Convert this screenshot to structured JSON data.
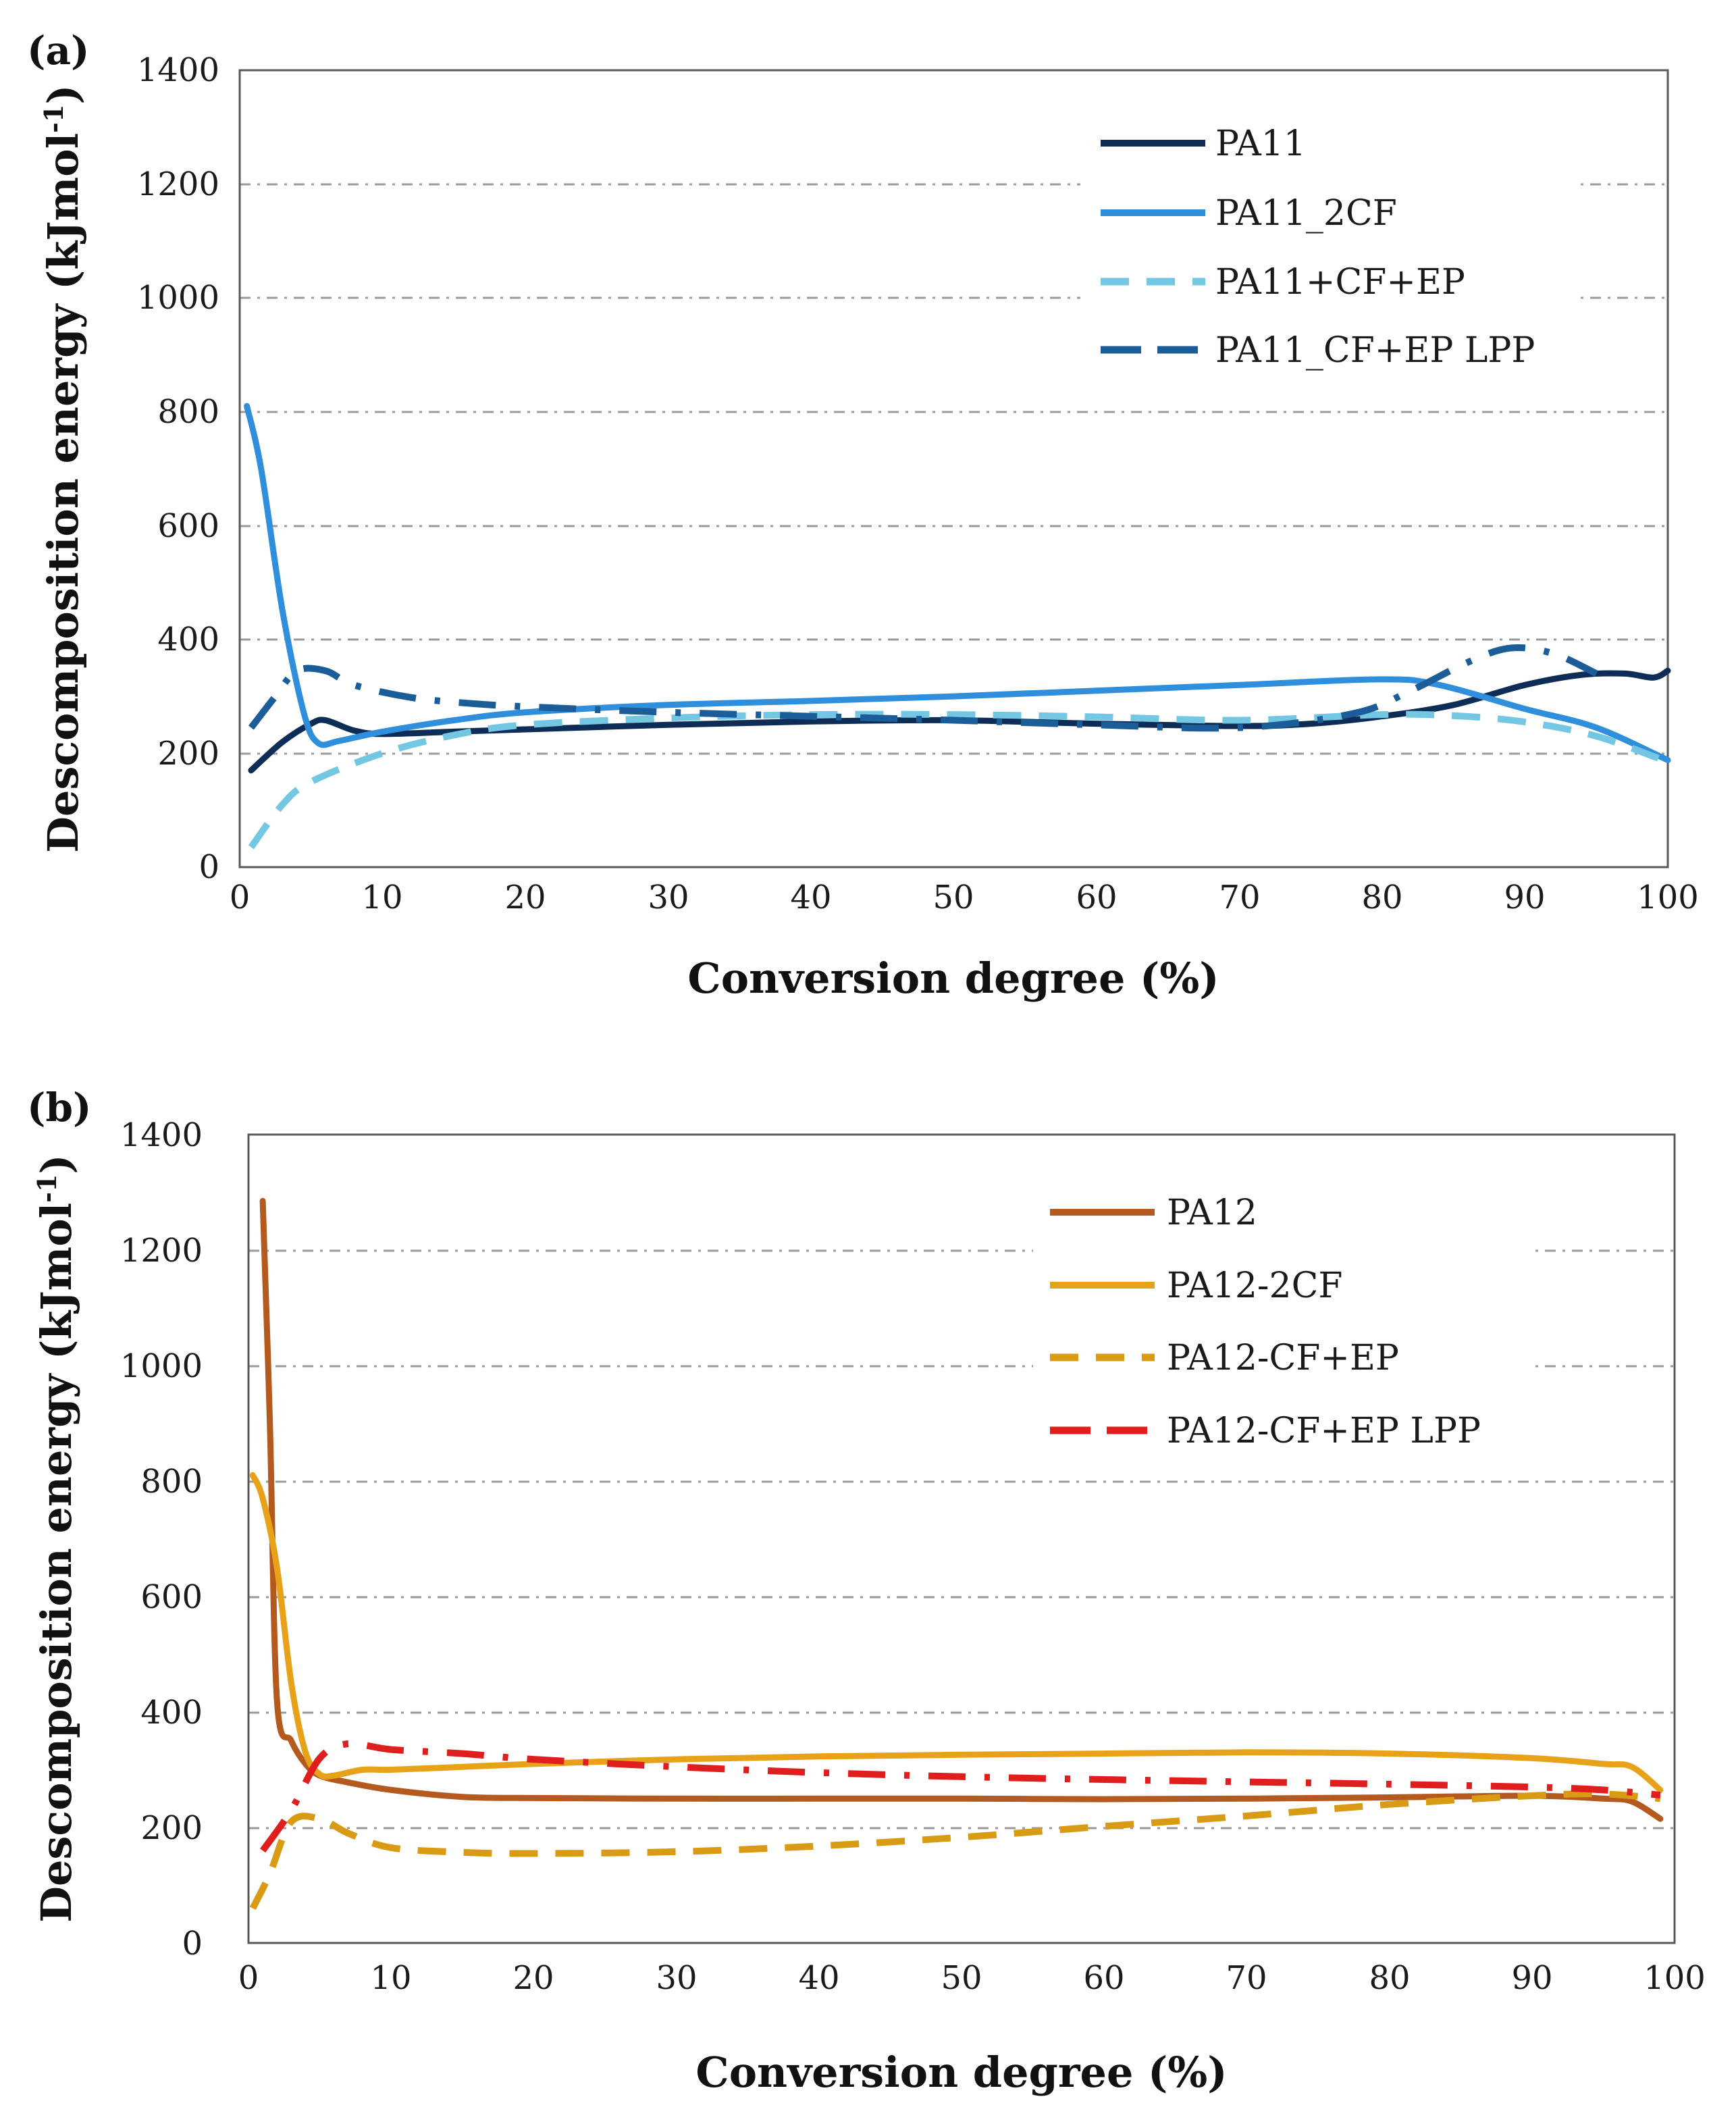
{
  "chart_data": [
    {
      "panel_label": "(a)",
      "type": "line",
      "xlabel": "Conversion degree (%)",
      "ylabel": "Descomposition energy (kJmol",
      "ylabel_sup": "-1",
      "ylabel_close": ")",
      "xlim": [
        0,
        100
      ],
      "ylim": [
        0,
        1400
      ],
      "xticks": [
        "0",
        "10",
        "20",
        "30",
        "40",
        "50",
        "60",
        "70",
        "80",
        "90",
        "100"
      ],
      "yticks": [
        "0",
        "200",
        "400",
        "600",
        "800",
        "1000",
        "1200",
        "1400"
      ],
      "grid": "horizontal dash-dot",
      "legend_position": "top-right",
      "series": [
        {
          "name": "PA11",
          "color": "#0d2d57",
          "style": "solid",
          "points": [
            [
              0.8,
              170
            ],
            [
              3,
              220
            ],
            [
              5,
              252
            ],
            [
              6,
              258
            ],
            [
              8,
              240
            ],
            [
              10,
              234
            ],
            [
              15,
              238
            ],
            [
              20,
              242
            ],
            [
              30,
              250
            ],
            [
              40,
              256
            ],
            [
              50,
              258
            ],
            [
              60,
              252
            ],
            [
              70,
              248
            ],
            [
              75,
              252
            ],
            [
              80,
              265
            ],
            [
              85,
              285
            ],
            [
              90,
              320
            ],
            [
              94,
              338
            ],
            [
              97,
              340
            ],
            [
              99,
              333
            ],
            [
              100,
              345
            ]
          ]
        },
        {
          "name": "PA11_2CF",
          "color": "#2f8fdc",
          "style": "solid",
          "points": [
            [
              0.5,
              810
            ],
            [
              1.5,
              700
            ],
            [
              3,
              450
            ],
            [
              4.5,
              270
            ],
            [
              5.5,
              218
            ],
            [
              7,
              222
            ],
            [
              10,
              238
            ],
            [
              15,
              258
            ],
            [
              20,
              272
            ],
            [
              30,
              285
            ],
            [
              40,
              292
            ],
            [
              50,
              300
            ],
            [
              60,
              310
            ],
            [
              70,
              320
            ],
            [
              80,
              330
            ],
            [
              84,
              320
            ],
            [
              90,
              278
            ],
            [
              95,
              245
            ],
            [
              100,
              188
            ]
          ]
        },
        {
          "name": "PA11+CF+EP",
          "color": "#74c7e2",
          "style": "dashed",
          "points": [
            [
              0.8,
              35
            ],
            [
              3,
              110
            ],
            [
              5,
              150
            ],
            [
              10,
              200
            ],
            [
              15,
              232
            ],
            [
              20,
              250
            ],
            [
              30,
              262
            ],
            [
              40,
              268
            ],
            [
              50,
              268
            ],
            [
              60,
              264
            ],
            [
              70,
              258
            ],
            [
              80,
              268
            ],
            [
              85,
              266
            ],
            [
              90,
              255
            ],
            [
              95,
              230
            ],
            [
              100,
              185
            ]
          ]
        },
        {
          "name": "PA11_CF+EP LPP",
          "color": "#1a5d99",
          "style": "dash-dot",
          "points": [
            [
              0.8,
              245
            ],
            [
              2.5,
              300
            ],
            [
              4,
              345
            ],
            [
              6,
              345
            ],
            [
              8,
              320
            ],
            [
              12,
              298
            ],
            [
              16,
              288
            ],
            [
              20,
              282
            ],
            [
              30,
              272
            ],
            [
              40,
              265
            ],
            [
              50,
              258
            ],
            [
              60,
              250
            ],
            [
              70,
              245
            ],
            [
              78,
              270
            ],
            [
              82,
              310
            ],
            [
              86,
              360
            ],
            [
              89,
              385
            ],
            [
              92,
              375
            ],
            [
              95,
              340
            ]
          ]
        }
      ]
    },
    {
      "panel_label": "(b)",
      "type": "line",
      "xlabel": "Conversion degree (%)",
      "ylabel": "Descomposition energy (kJmol",
      "ylabel_sup": "-1",
      "ylabel_close": ")",
      "xlim": [
        0,
        100
      ],
      "ylim": [
        0,
        1400
      ],
      "xticks": [
        "0",
        "10",
        "20",
        "30",
        "40",
        "50",
        "60",
        "70",
        "80",
        "90",
        "100"
      ],
      "yticks": [
        "0",
        "200",
        "400",
        "600",
        "800",
        "1000",
        "1200",
        "1400"
      ],
      "grid": "horizontal dash-dot",
      "legend_position": "top-right",
      "series": [
        {
          "name": "PA12",
          "color": "#b55a1e",
          "style": "solid",
          "points": [
            [
              1,
              1285
            ],
            [
              1.5,
              900
            ],
            [
              2,
              420
            ],
            [
              3,
              350
            ],
            [
              4,
              310
            ],
            [
              5,
              290
            ],
            [
              7,
              278
            ],
            [
              10,
              265
            ],
            [
              15,
              253
            ],
            [
              20,
              251
            ],
            [
              30,
              250
            ],
            [
              40,
              250
            ],
            [
              50,
              250
            ],
            [
              60,
              249
            ],
            [
              70,
              250
            ],
            [
              80,
              252
            ],
            [
              90,
              255
            ],
            [
              95,
              250
            ],
            [
              97,
              245
            ],
            [
              99,
              215
            ]
          ]
        },
        {
          "name": "PA12-2CF",
          "color": "#e8a21a",
          "style": "solid",
          "points": [
            [
              0.3,
              810
            ],
            [
              1,
              770
            ],
            [
              2,
              650
            ],
            [
              3,
              450
            ],
            [
              4,
              330
            ],
            [
              5,
              292
            ],
            [
              6,
              290
            ],
            [
              8,
              300
            ],
            [
              10,
              300
            ],
            [
              15,
              305
            ],
            [
              20,
              310
            ],
            [
              30,
              318
            ],
            [
              40,
              323
            ],
            [
              50,
              326
            ],
            [
              60,
              328
            ],
            [
              70,
              330
            ],
            [
              80,
              328
            ],
            [
              90,
              320
            ],
            [
              95,
              310
            ],
            [
              97,
              305
            ],
            [
              99,
              265
            ]
          ]
        },
        {
          "name": "PA12-CF+EP",
          "color": "#d99a14",
          "style": "dashed",
          "points": [
            [
              0.3,
              60
            ],
            [
              1.5,
              120
            ],
            [
              3,
              210
            ],
            [
              5,
              215
            ],
            [
              7,
              190
            ],
            [
              10,
              165
            ],
            [
              15,
              157
            ],
            [
              20,
              155
            ],
            [
              30,
              158
            ],
            [
              40,
              168
            ],
            [
              50,
              183
            ],
            [
              60,
              202
            ],
            [
              70,
              220
            ],
            [
              80,
              240
            ],
            [
              90,
              255
            ],
            [
              95,
              258
            ],
            [
              99,
              250
            ]
          ]
        },
        {
          "name": "PA12-CF+EP LPP",
          "color": "#e01e1e",
          "style": "dash-dot",
          "points": [
            [
              1,
              160
            ],
            [
              3,
              230
            ],
            [
              5,
              320
            ],
            [
              7,
              345
            ],
            [
              10,
              335
            ],
            [
              15,
              328
            ],
            [
              20,
              318
            ],
            [
              30,
              305
            ],
            [
              40,
              295
            ],
            [
              50,
              288
            ],
            [
              60,
              283
            ],
            [
              70,
              279
            ],
            [
              80,
              275
            ],
            [
              90,
              270
            ],
            [
              95,
              265
            ],
            [
              99,
              256
            ]
          ]
        }
      ]
    }
  ]
}
